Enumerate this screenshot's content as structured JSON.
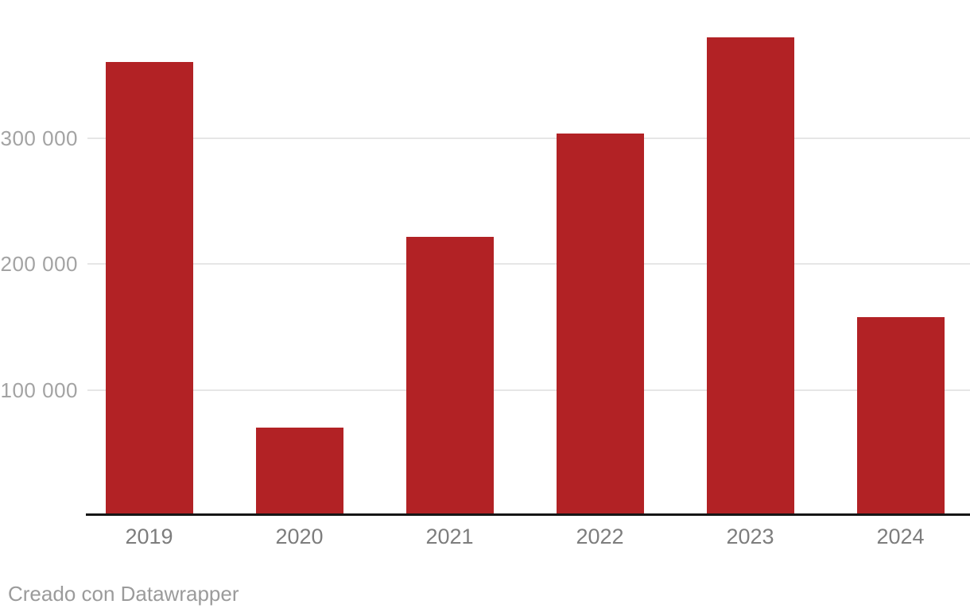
{
  "chart_data": {
    "type": "bar",
    "categories": [
      "2019",
      "2020",
      "2021",
      "2022",
      "2023",
      "2024"
    ],
    "values": [
      361000,
      70000,
      222000,
      304000,
      380000,
      158000
    ],
    "title": "",
    "xlabel": "",
    "ylabel": "",
    "ylim": [
      0,
      410000
    ],
    "yticks": [
      {
        "value": 100000,
        "label": "100 000"
      },
      {
        "value": 200000,
        "label": "200 000"
      },
      {
        "value": 300000,
        "label": "300 000"
      }
    ],
    "grid": true,
    "legend": false,
    "bar_color": "#b22225"
  },
  "colors": {
    "bar": "#b22225",
    "gridline": "#e6e6e6",
    "axis_line": "#161616",
    "y_tick_label": "#a3a3a3",
    "x_label": "#7d7d7d",
    "footer_text": "#9b9b9b",
    "background": "#ffffff"
  },
  "footer": {
    "attribution": "Creado con Datawrapper"
  }
}
